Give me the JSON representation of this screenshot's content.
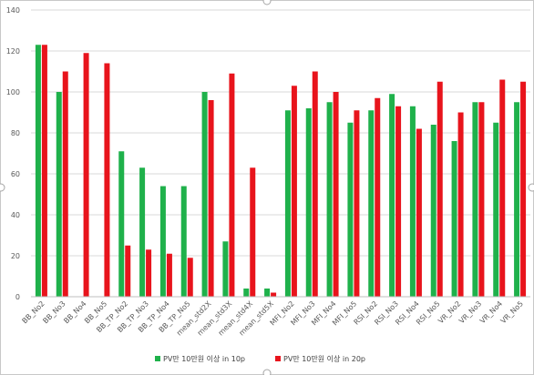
{
  "chart_data": {
    "type": "bar",
    "categories": [
      "BB_No2",
      "BB_No3",
      "BB_No4",
      "BB_No5",
      "BB_TP_No2",
      "BB_TP_No3",
      "BB_TP_No4",
      "BB_TP_No5",
      "mean_std2X",
      "mean_std3X",
      "mean_std4X",
      "mean_std5X",
      "MFI_No2",
      "MFI_No3",
      "MFI_No4",
      "MFI_No5",
      "RSI_No2",
      "RSI_No3",
      "RSI_No4",
      "RSI_No5",
      "VR_No2",
      "VR_No3",
      "VR_No4",
      "VR_No5"
    ],
    "series": [
      {
        "name": "PV만 10만원 이상 in 10p",
        "color": "#1fb14b",
        "values": [
          123,
          100,
          0,
          0,
          71,
          63,
          54,
          54,
          100,
          27,
          4,
          4,
          91,
          92,
          95,
          85,
          91,
          99,
          93,
          84,
          76,
          95,
          85,
          95
        ]
      },
      {
        "name": "PV만 10만원 이상 in 20p",
        "color": "#e8141c",
        "values": [
          123,
          110,
          119,
          114,
          25,
          23,
          21,
          19,
          96,
          109,
          63,
          2,
          103,
          110,
          100,
          91,
          97,
          93,
          82,
          105,
          90,
          95,
          106,
          105
        ]
      }
    ],
    "ylim": [
      0,
      140
    ],
    "yticks": [
      "0",
      "20",
      "40",
      "60",
      "80",
      "100",
      "120",
      "140"
    ],
    "grid": true,
    "legend_position": "bottom"
  }
}
